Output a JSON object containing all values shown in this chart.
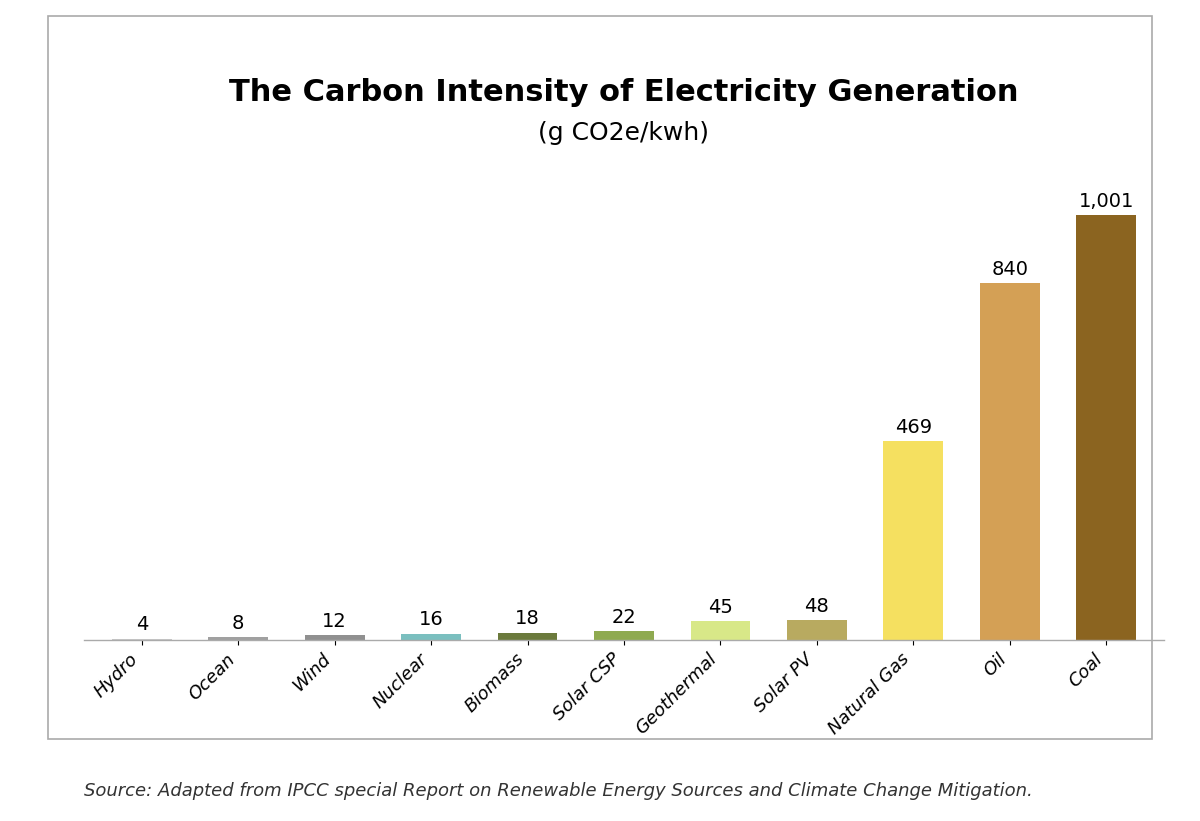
{
  "title_line1": "The Carbon Intensity of Electricity Generation",
  "title_line2": "(g CO2e/kwh)",
  "categories": [
    "Hydro",
    "Ocean",
    "Wind",
    "Nuclear",
    "Biomass",
    "Solar CSP",
    "Geothermal",
    "Solar PV",
    "Natural Gas",
    "Oil",
    "Coal"
  ],
  "values": [
    4,
    8,
    12,
    16,
    18,
    22,
    45,
    48,
    469,
    840,
    1001
  ],
  "bar_colors": [
    "#c8c8c8",
    "#a0a0a0",
    "#909090",
    "#7abfbf",
    "#6b7a3c",
    "#8faa50",
    "#d8e888",
    "#b8aa60",
    "#f5e060",
    "#d4a055",
    "#8b6420"
  ],
  "value_labels": [
    "4",
    "8",
    "12",
    "16",
    "18",
    "22",
    "45",
    "48",
    "469",
    "840",
    "1,001"
  ],
  "ylim": [
    0,
    1120
  ],
  "source_text": "Source: Adapted from IPCC special Report on Renewable Energy Sources and Climate Change Mitigation.",
  "background_color": "#ffffff",
  "title_fontsize": 22,
  "subtitle_fontsize": 18,
  "label_fontsize": 14,
  "tick_fontsize": 13,
  "source_fontsize": 13,
  "bar_width": 0.62
}
